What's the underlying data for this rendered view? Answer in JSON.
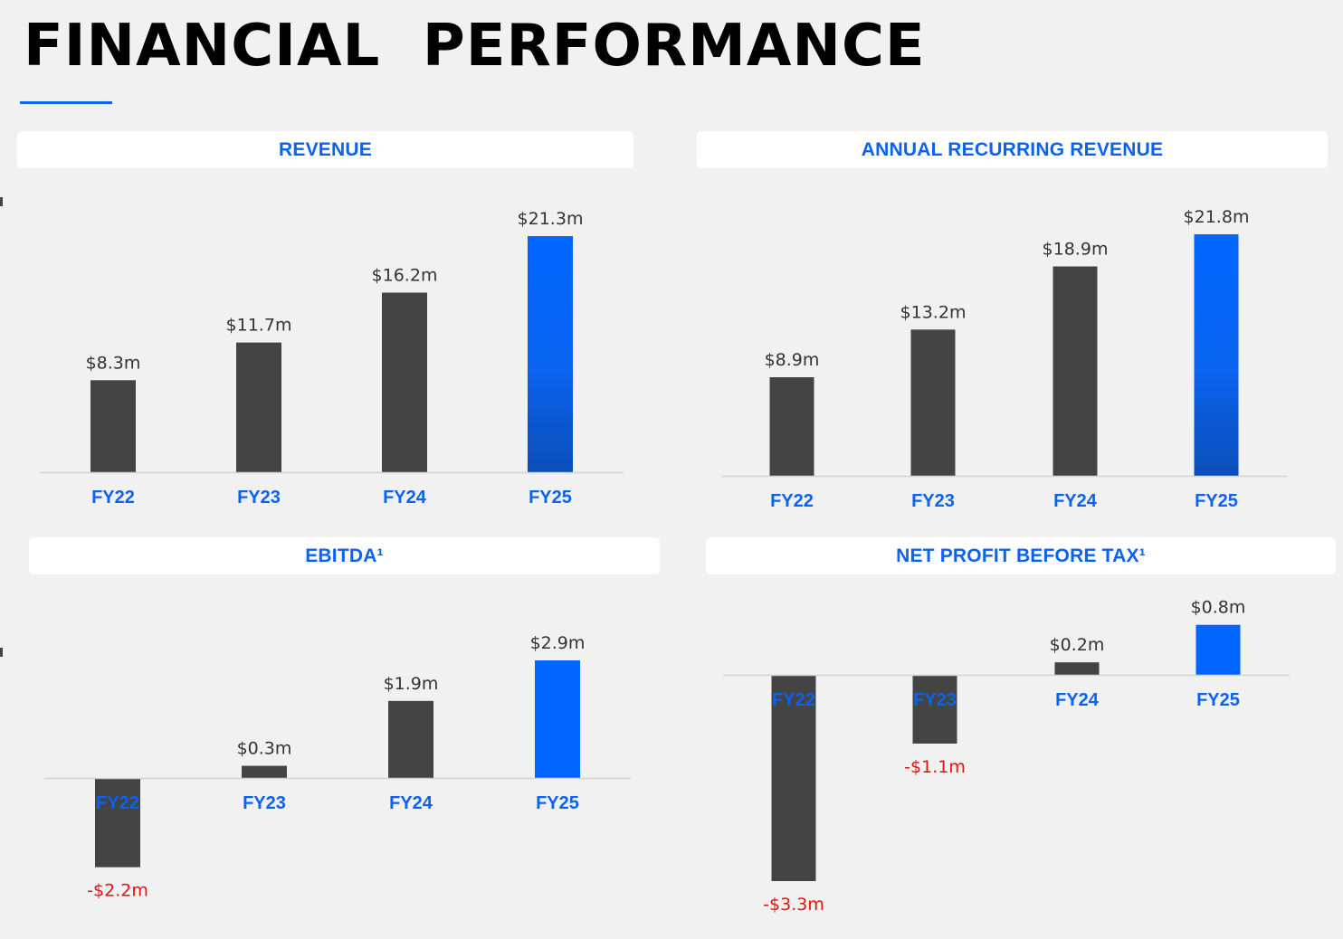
{
  "page_title": "FINANCIAL  PERFORMANCE",
  "colors": {
    "accent_blue": "#0a62f2",
    "bar_dark": "#444444",
    "bar_highlight": "#0066ff",
    "negative_label": "#e0140c",
    "background": "#f1f1f2"
  },
  "chart_data": [
    {
      "id": "revenue",
      "type": "bar",
      "title": "REVENUE",
      "categories": [
        "FY22",
        "FY23",
        "FY24",
        "FY25"
      ],
      "values": [
        8.3,
        11.7,
        16.2,
        21.3
      ],
      "labels": [
        "$8.3m",
        "$11.7m",
        "$16.2m",
        "$21.3m"
      ],
      "unit": "$m",
      "highlight_index": 3,
      "highlight_style": "gradient",
      "ylim": [
        0,
        21.3
      ],
      "grid": false,
      "xlabel": "",
      "ylabel": ""
    },
    {
      "id": "arr",
      "type": "bar",
      "title": "ANNUAL RECURRING REVENUE",
      "categories": [
        "FY22",
        "FY23",
        "FY24",
        "FY25"
      ],
      "values": [
        8.9,
        13.2,
        18.9,
        21.8
      ],
      "labels": [
        "$8.9m",
        "$13.2m",
        "$18.9m",
        "$21.8m"
      ],
      "unit": "$m",
      "highlight_index": 3,
      "highlight_style": "gradient",
      "ylim": [
        0,
        21.8
      ],
      "grid": false,
      "xlabel": "",
      "ylabel": ""
    },
    {
      "id": "ebitda",
      "type": "bar",
      "title": "EBITDA¹",
      "categories": [
        "FY22",
        "FY23",
        "FY24",
        "FY25"
      ],
      "values": [
        -2.2,
        0.3,
        1.9,
        2.9
      ],
      "labels": [
        "-$2.2m",
        "$0.3m",
        "$1.9m",
        "$2.9m"
      ],
      "unit": "$m",
      "highlight_index": 3,
      "highlight_style": "solid",
      "ylim": [
        -2.2,
        2.9
      ],
      "grid": false,
      "xlabel": "",
      "ylabel": ""
    },
    {
      "id": "npbt",
      "type": "bar",
      "title": "NET PROFIT BEFORE TAX¹",
      "categories": [
        "FY22",
        "FY23",
        "FY24",
        "FY25"
      ],
      "values": [
        -3.3,
        -1.1,
        0.2,
        0.8
      ],
      "labels": [
        "-$3.3m",
        "-$1.1m",
        "$0.2m",
        "$0.8m"
      ],
      "unit": "$m",
      "highlight_index": 3,
      "highlight_style": "solid",
      "ylim": [
        -3.3,
        0.8
      ],
      "grid": false,
      "xlabel": "",
      "ylabel": ""
    }
  ]
}
